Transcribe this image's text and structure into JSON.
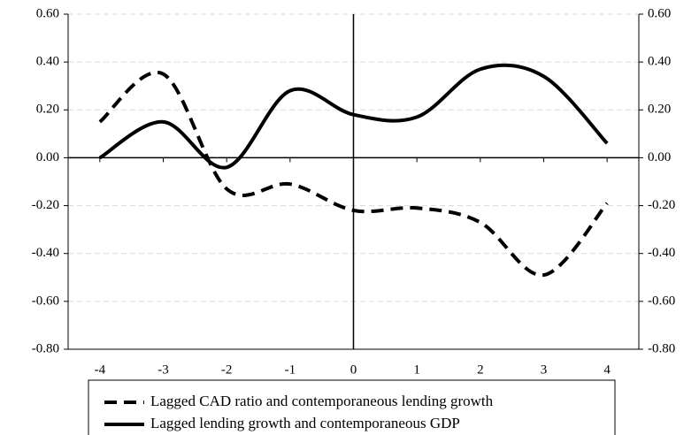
{
  "chart_data": {
    "type": "line",
    "x": [
      -4,
      -3,
      -2,
      -1,
      0,
      1,
      2,
      3,
      4
    ],
    "xlim": [
      -4.5,
      4.5
    ],
    "xticks": [
      -4,
      -3,
      -2,
      -1,
      0,
      1,
      2,
      3,
      4
    ],
    "ylim": [
      -0.8,
      0.6
    ],
    "yticks": [
      {
        "value": -0.8,
        "label": "-0.80"
      },
      {
        "value": -0.6,
        "label": "-0.60"
      },
      {
        "value": -0.4,
        "label": "-0.40"
      },
      {
        "value": -0.2,
        "label": "-0.20"
      },
      {
        "value": 0,
        "label": "0.00"
      },
      {
        "value": 0.2,
        "label": "0.20"
      },
      {
        "value": 0.4,
        "label": "0.40"
      },
      {
        "value": 0.6,
        "label": "0.60"
      }
    ],
    "y2lim": [
      -0.8,
      0.6
    ],
    "y2ticks": [
      {
        "value": -0.8,
        "label": "-0.80"
      },
      {
        "value": -0.6,
        "label": "-0.60"
      },
      {
        "value": -0.4,
        "label": "-0.40"
      },
      {
        "value": -0.2,
        "label": "-0.20"
      },
      {
        "value": 0,
        "label": "0.00"
      },
      {
        "value": 0.2,
        "label": "0.20"
      },
      {
        "value": 0.4,
        "label": "0.40"
      },
      {
        "value": 0.6,
        "label": "0.60"
      }
    ],
    "grid": true,
    "series": [
      {
        "name": "Lagged CAD ratio and contemporaneous lending growth",
        "color": "#000000",
        "dash": true,
        "values": [
          0.15,
          0.35,
          -0.13,
          -0.11,
          -0.22,
          -0.21,
          -0.27,
          -0.49,
          -0.19
        ]
      },
      {
        "name": "Lagged lending growth and contemporaneous GDP",
        "color": "#000000",
        "dash": false,
        "values": [
          0.0,
          0.15,
          -0.04,
          0.28,
          0.18,
          0.17,
          0.37,
          0.34,
          0.06
        ]
      }
    ]
  }
}
